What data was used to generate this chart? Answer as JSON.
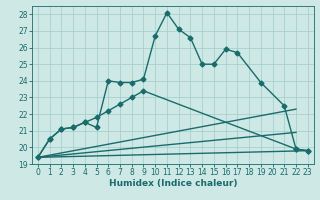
{
  "xlabel": "Humidex (Indice chaleur)",
  "xlim": [
    -0.5,
    23.5
  ],
  "ylim": [
    19,
    28.5
  ],
  "yticks": [
    19,
    20,
    21,
    22,
    23,
    24,
    25,
    26,
    27,
    28
  ],
  "xticks": [
    0,
    1,
    2,
    3,
    4,
    5,
    6,
    7,
    8,
    9,
    10,
    11,
    12,
    13,
    14,
    15,
    16,
    17,
    18,
    19,
    20,
    21,
    22,
    23
  ],
  "bg_color": "#cde8e5",
  "grid_color": "#a0ccc9",
  "line_color": "#1a6b6b",
  "line_width": 1.0,
  "marker": "D",
  "marker_size": 2.5,
  "curve1_x": [
    0,
    1,
    2,
    3,
    4,
    5,
    6,
    7,
    8,
    9,
    10,
    11,
    12,
    13,
    14,
    15,
    16,
    17,
    19,
    21,
    22,
    23
  ],
  "curve1_y": [
    19.4,
    20.5,
    21.1,
    21.2,
    21.5,
    21.2,
    24.0,
    23.9,
    23.9,
    24.1,
    26.7,
    28.1,
    27.1,
    26.6,
    25.0,
    25.0,
    25.9,
    25.7,
    23.9,
    22.5,
    19.9,
    19.8
  ],
  "line1": [
    [
      0,
      19.4
    ],
    [
      22,
      22.3
    ]
  ],
  "line2": [
    [
      0,
      19.4
    ],
    [
      22,
      20.9
    ]
  ],
  "line3": [
    [
      0,
      19.4
    ],
    [
      23,
      19.8
    ]
  ],
  "curve2_x": [
    0,
    1,
    2,
    3,
    4,
    5,
    6,
    7,
    8,
    9,
    10,
    11,
    12,
    13,
    14,
    15,
    16,
    17,
    19,
    21,
    22,
    23
  ],
  "curve2_y": [
    19.4,
    20.5,
    21.1,
    21.2,
    21.5,
    21.8,
    22.2,
    22.6,
    23.0,
    23.4,
    null,
    null,
    null,
    null,
    null,
    null,
    null,
    null,
    null,
    null,
    19.9,
    19.8
  ]
}
